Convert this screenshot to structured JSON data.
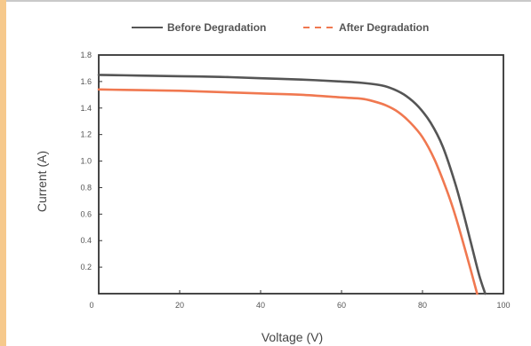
{
  "chart_data": {
    "type": "line",
    "title": "",
    "xlabel": "Voltage (V)",
    "ylabel": "Current (A)",
    "xlim": [
      0,
      100
    ],
    "ylim": [
      0,
      1.8
    ],
    "xticks": [
      0,
      20,
      40,
      60,
      80,
      100
    ],
    "yticks": [
      0.2,
      0.4,
      0.6,
      0.8,
      1.0,
      1.2,
      1.4,
      1.6,
      1.8
    ],
    "xtick_labels": [
      "0",
      "20",
      "40",
      "60",
      "80",
      "100"
    ],
    "ytick_labels": [
      "0.2",
      "0.4",
      "0.6",
      "0.8",
      "1.0",
      "1.2",
      "1.4",
      "1.6",
      "1.8"
    ],
    "grid": false,
    "legend_position": "top-center",
    "series": [
      {
        "name": "Before Degradation",
        "color": "#555555",
        "dash": "solid",
        "x": [
          0,
          10,
          20,
          30,
          40,
          50,
          60,
          65,
          70,
          73,
          76,
          79,
          82,
          85,
          88,
          90,
          92,
          94,
          95.5
        ],
        "y": [
          1.65,
          1.645,
          1.64,
          1.635,
          1.625,
          1.615,
          1.6,
          1.59,
          1.57,
          1.54,
          1.49,
          1.41,
          1.29,
          1.11,
          0.84,
          0.62,
          0.38,
          0.14,
          0
        ]
      },
      {
        "name": "After Degradation",
        "color": "#f07850",
        "dash": "dashed",
        "x": [
          0,
          10,
          20,
          30,
          40,
          50,
          60,
          65,
          68,
          71,
          74,
          77,
          80,
          83,
          86,
          88,
          90,
          92,
          93.5
        ],
        "y": [
          1.54,
          1.535,
          1.53,
          1.52,
          1.51,
          1.5,
          1.48,
          1.47,
          1.45,
          1.42,
          1.37,
          1.29,
          1.18,
          1.01,
          0.78,
          0.6,
          0.39,
          0.17,
          0
        ]
      }
    ]
  }
}
